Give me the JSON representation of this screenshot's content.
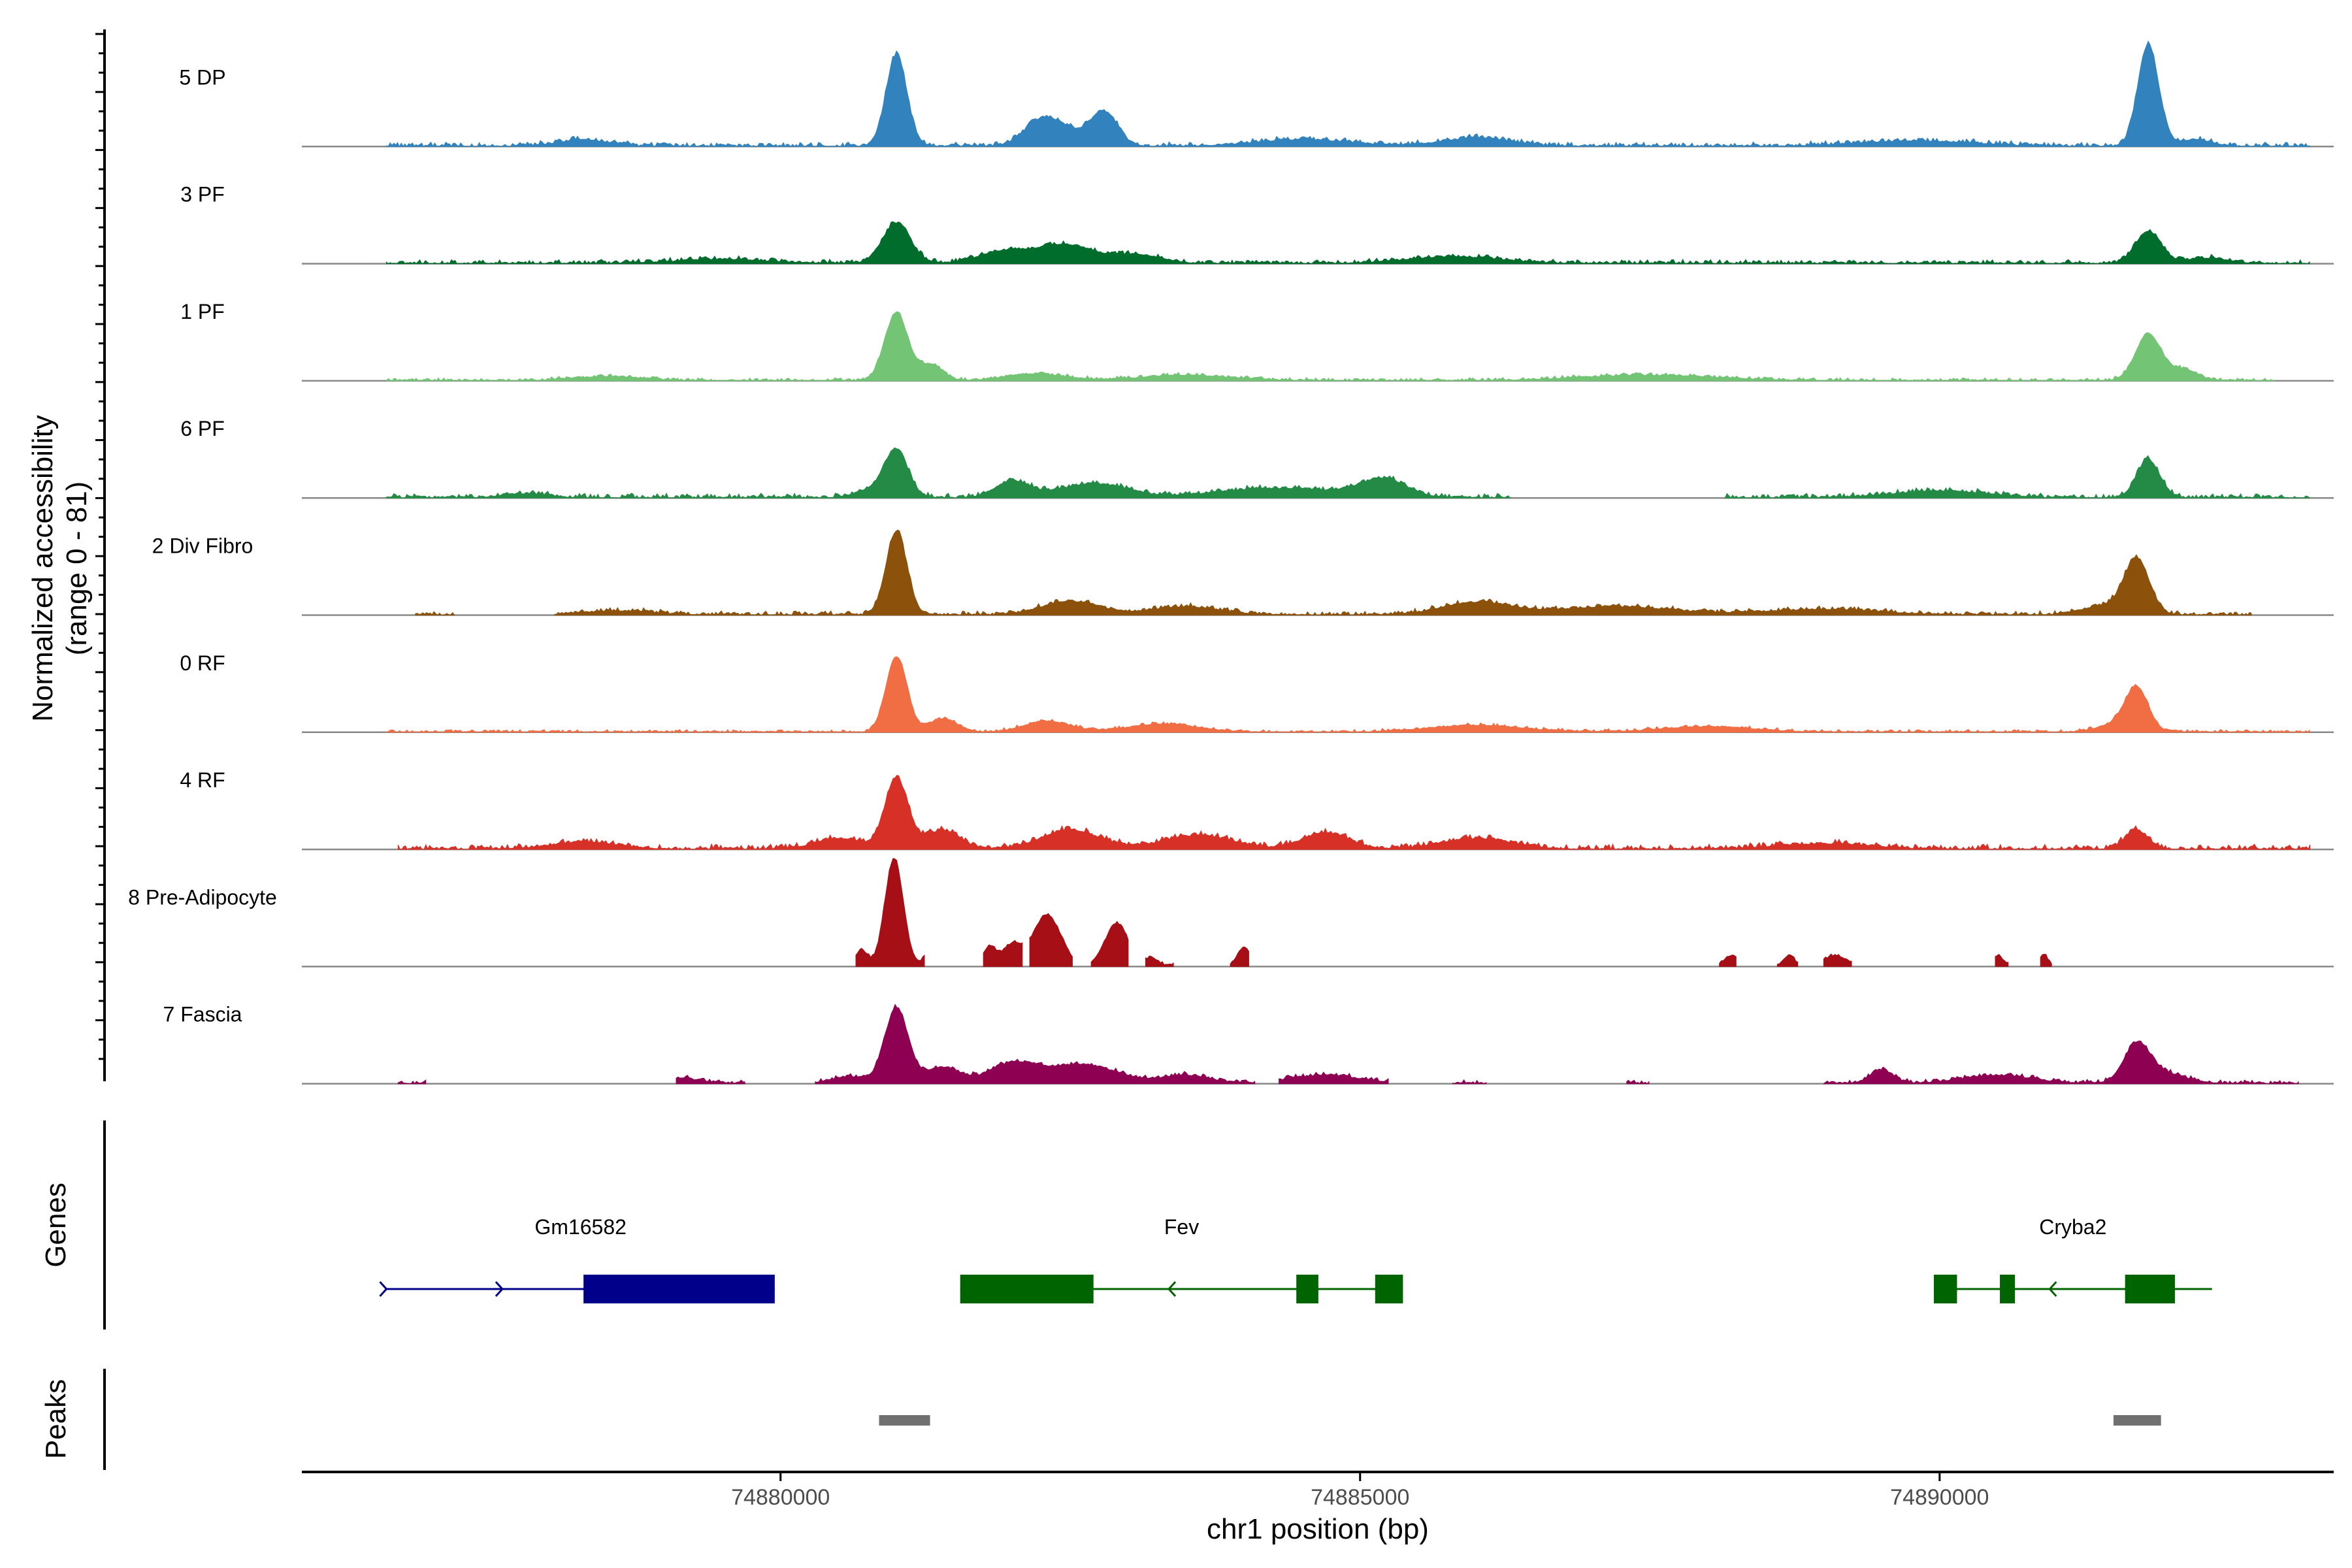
{
  "chart_data": {
    "type": "area",
    "xlabel": "chr1 position (bp)",
    "ylabel": "Normalized accessibility",
    "ylabel_range": "(range 0 - 81)",
    "ylim": [
      0,
      81
    ],
    "xlim": [
      74875870,
      74893400
    ],
    "x_ticks": [
      74880000,
      74885000,
      74890000
    ],
    "x_tick_labels": [
      "74880000",
      "74885000",
      "74890000"
    ],
    "panel_titles": {
      "genes": "Genes",
      "peaks": "Peaks"
    },
    "tracks": [
      {
        "name": "5 DP",
        "color": "#3182bd",
        "peaks": [
          [
            74881000,
            68,
            90
          ],
          [
            74882250,
            16,
            150
          ],
          [
            74882800,
            22,
            110
          ],
          [
            74882500,
            10,
            220
          ],
          [
            74891800,
            75,
            90
          ],
          [
            74878300,
            5,
            200
          ],
          [
            74886000,
            6,
            300
          ],
          [
            74884500,
            5,
            400
          ],
          [
            74889800,
            4,
            500
          ],
          [
            74892200,
            5,
            150
          ]
        ],
        "noise": 3.5,
        "spans": [
          [
            74876600,
            74893200
          ]
        ]
      },
      {
        "name": "3 PF",
        "color": "#006d2c",
        "peaks": [
          [
            74881000,
            30,
            120
          ],
          [
            74882450,
            14,
            260
          ],
          [
            74881900,
            8,
            200
          ],
          [
            74883100,
            6,
            200
          ],
          [
            74891800,
            24,
            110
          ],
          [
            74885800,
            5,
            400
          ],
          [
            74879500,
            3,
            400
          ],
          [
            74892300,
            4,
            180
          ]
        ],
        "noise": 3.2,
        "spans": [
          [
            74876600,
            74893200
          ]
        ]
      },
      {
        "name": "1 PF",
        "color": "#74c476",
        "peaks": [
          [
            74881000,
            50,
            100
          ],
          [
            74881300,
            12,
            100
          ],
          [
            74882200,
            5,
            250
          ],
          [
            74883500,
            4,
            400
          ],
          [
            74887500,
            4,
            600
          ],
          [
            74891800,
            34,
            110
          ],
          [
            74878500,
            3,
            300
          ],
          [
            74892100,
            8,
            120
          ]
        ],
        "noise": 2.4,
        "spans": [
          [
            74876600,
            74892900
          ]
        ]
      },
      {
        "name": "6 PF",
        "color": "#238b45",
        "peaks": [
          [
            74881000,
            34,
            100
          ],
          [
            74882000,
            12,
            150
          ],
          [
            74882700,
            10,
            300
          ],
          [
            74885200,
            13,
            200
          ],
          [
            74884300,
            7,
            500
          ],
          [
            74891800,
            28,
            100
          ],
          [
            74880800,
            6,
            150
          ],
          [
            74890000,
            5,
            400
          ],
          [
            74877800,
            3,
            200
          ]
        ],
        "noise": 3.6,
        "spans": [
          [
            74876600,
            74886300
          ],
          [
            74888150,
            74893200
          ]
        ]
      },
      {
        "name": "2 Div Fibro",
        "color": "#8c510a",
        "peaks": [
          [
            74881000,
            62,
            90
          ],
          [
            74882500,
            10,
            250
          ],
          [
            74883500,
            6,
            300
          ],
          [
            74886000,
            9,
            300
          ],
          [
            74887200,
            6,
            500
          ],
          [
            74891700,
            40,
            110
          ],
          [
            74891400,
            6,
            200
          ],
          [
            74878600,
            3,
            300
          ],
          [
            74889000,
            4,
            500
          ]
        ],
        "noise": 3.2,
        "spans": [
          [
            74876850,
            74877200
          ],
          [
            74878050,
            74892700
          ]
        ]
      },
      {
        "name": "0 RF",
        "color": "#f16d43",
        "peaks": [
          [
            74881000,
            56,
            90
          ],
          [
            74881400,
            10,
            120
          ],
          [
            74882300,
            8,
            200
          ],
          [
            74883300,
            6,
            300
          ],
          [
            74886000,
            5,
            400
          ],
          [
            74891700,
            32,
            100
          ],
          [
            74891500,
            5,
            150
          ],
          [
            74888000,
            4,
            400
          ]
        ],
        "noise": 2.2,
        "spans": [
          [
            74876600,
            74893200
          ]
        ]
      },
      {
        "name": "4 RF",
        "color": "#d73027",
        "peaks": [
          [
            74881000,
            52,
            100
          ],
          [
            74881400,
            14,
            150
          ],
          [
            74882500,
            14,
            250
          ],
          [
            74883600,
            10,
            300
          ],
          [
            74884700,
            12,
            200
          ],
          [
            74886000,
            8,
            300
          ],
          [
            74891700,
            14,
            100
          ],
          [
            74880500,
            8,
            200
          ],
          [
            74878300,
            5,
            300
          ],
          [
            74889000,
            4,
            400
          ]
        ],
        "noise": 4.0,
        "spans": [
          [
            74876700,
            74893200
          ]
        ]
      },
      {
        "name": "8 Pre-Adipocyte",
        "color": "#a50f15",
        "peaks": [
          [
            74880980,
            80,
            80
          ],
          [
            74881300,
            10,
            60
          ],
          [
            74882300,
            38,
            120
          ],
          [
            74882000,
            16,
            80
          ],
          [
            74882900,
            32,
            100
          ],
          [
            74881800,
            14,
            60
          ],
          [
            74883500,
            8,
            60
          ],
          [
            74884000,
            14,
            60
          ],
          [
            74888200,
            8,
            60
          ],
          [
            74888700,
            8,
            50
          ],
          [
            74889100,
            8,
            100
          ],
          [
            74890500,
            8,
            50
          ],
          [
            74890900,
            8,
            40
          ],
          [
            74880700,
            12,
            50
          ],
          [
            74883200,
            6,
            60
          ]
        ],
        "noise": 2.0,
        "spans": [
          [
            74880650,
            74881250
          ],
          [
            74881750,
            74882100
          ],
          [
            74882150,
            74882520
          ],
          [
            74882680,
            74883000
          ],
          [
            74883150,
            74883400
          ],
          [
            74883880,
            74884050
          ],
          [
            74888100,
            74888250
          ],
          [
            74888600,
            74888780
          ],
          [
            74889000,
            74889250
          ],
          [
            74890480,
            74890600
          ],
          [
            74890870,
            74890980
          ]
        ]
      },
      {
        "name": "7 Fascia",
        "color": "#8e0152",
        "peaks": [
          [
            74881000,
            56,
            100
          ],
          [
            74881400,
            12,
            150
          ],
          [
            74882000,
            14,
            200
          ],
          [
            74882600,
            14,
            300
          ],
          [
            74883500,
            6,
            200
          ],
          [
            74891700,
            26,
            110
          ],
          [
            74891900,
            8,
            200
          ],
          [
            74884700,
            6,
            300
          ],
          [
            74889500,
            10,
            100
          ],
          [
            74890500,
            6,
            300
          ],
          [
            74880600,
            5,
            150
          ],
          [
            74879100,
            4,
            200
          ]
        ],
        "noise": 3.0,
        "spans": [
          [
            74876700,
            74876950
          ],
          [
            74879100,
            74879700
          ],
          [
            74880300,
            74884100
          ],
          [
            74884300,
            74885250
          ],
          [
            74885800,
            74886100
          ],
          [
            74887300,
            74887500
          ],
          [
            74889000,
            74893100
          ]
        ]
      }
    ],
    "genes": [
      {
        "name": "Gm16582",
        "strand": "+",
        "color": "#00008b",
        "start": 74876600,
        "end": 74879950,
        "exons": [
          [
            74878300,
            74879950
          ]
        ],
        "arrows": [
          74876600,
          74877600
        ]
      },
      {
        "name": "Fev",
        "strand": "-",
        "color": "#006400",
        "start": 74881550,
        "end": 74885370,
        "exons": [
          [
            74881550,
            74882700
          ],
          [
            74884450,
            74884640
          ],
          [
            74885130,
            74885370
          ]
        ],
        "arrows": [
          74883350
        ]
      },
      {
        "name": "Cryba2",
        "strand": "-",
        "color": "#006400",
        "start": 74889950,
        "end": 74892350,
        "exons": [
          [
            74889950,
            74890150
          ],
          [
            74890520,
            74890650
          ],
          [
            74891600,
            74892030
          ]
        ],
        "arrows": [
          74890950
        ]
      }
    ],
    "peak_regions": [
      [
        74880850,
        74881290
      ],
      [
        74891500,
        74891910
      ]
    ],
    "peak_color": "#707070"
  }
}
